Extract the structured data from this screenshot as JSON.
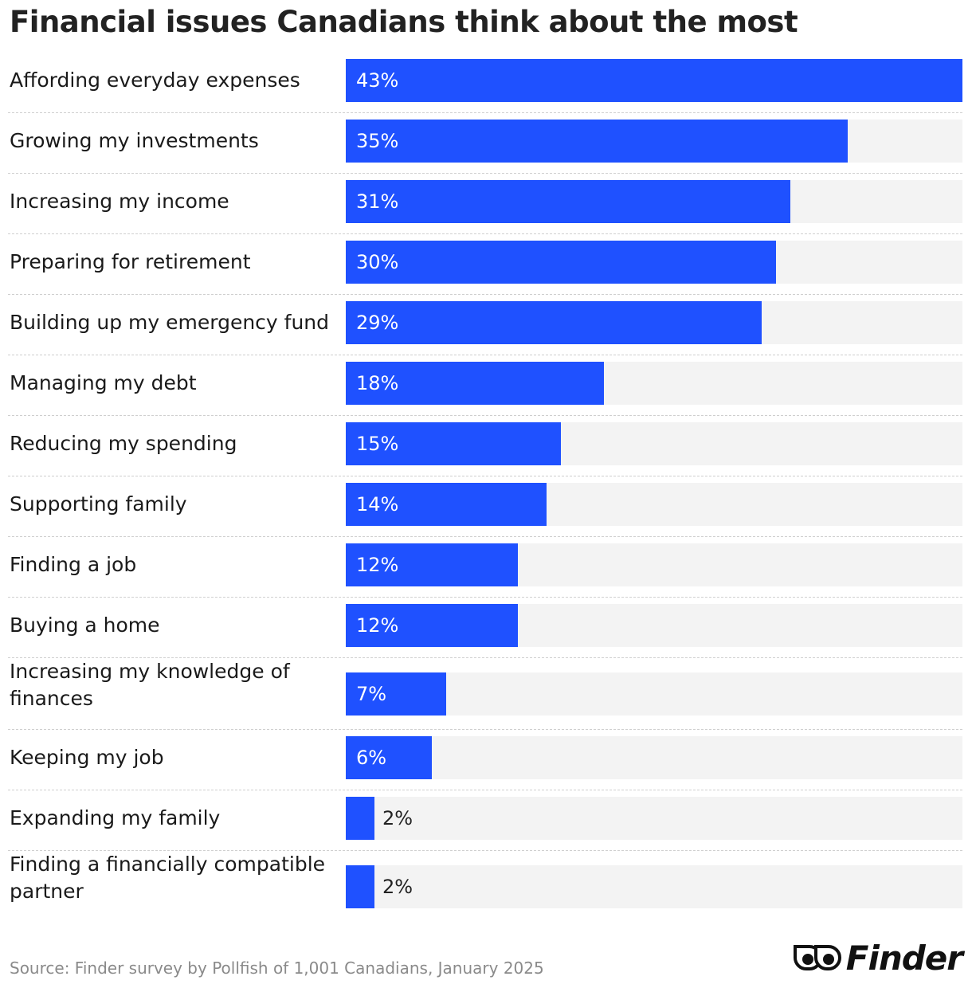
{
  "chart_data": {
    "type": "bar",
    "orientation": "horizontal",
    "title": "Financial issues Canadians think about the most",
    "categories": [
      "Affording everyday expenses",
      "Growing my investments",
      "Increasing my income",
      "Preparing for retirement",
      "Building up my emergency fund",
      "Managing my debt",
      "Reducing my spending",
      "Supporting family",
      "Finding a job",
      "Buying a home",
      "Increasing my knowledge of finances",
      "Keeping my job",
      "Expanding my family",
      "Finding a financially compatible partner"
    ],
    "values": [
      43,
      35,
      31,
      30,
      29,
      18,
      15,
      14,
      12,
      12,
      7,
      6,
      2,
      2
    ],
    "value_labels": [
      "43%",
      "35%",
      "31%",
      "30%",
      "29%",
      "18%",
      "15%",
      "14%",
      "12%",
      "12%",
      "7%",
      "6%",
      "2%",
      "2%"
    ],
    "xlim": [
      0,
      43
    ],
    "grid": false,
    "legend": "none",
    "colors": {
      "bar": "#1f51ff",
      "track": "#f3f3f3",
      "label_inside": "#ffffff",
      "label_outside": "#222222"
    }
  },
  "footer": {
    "source": "Source: Finder survey by Pollfish of 1,001 Canadians, January 2025",
    "logo_text": "Finder"
  }
}
